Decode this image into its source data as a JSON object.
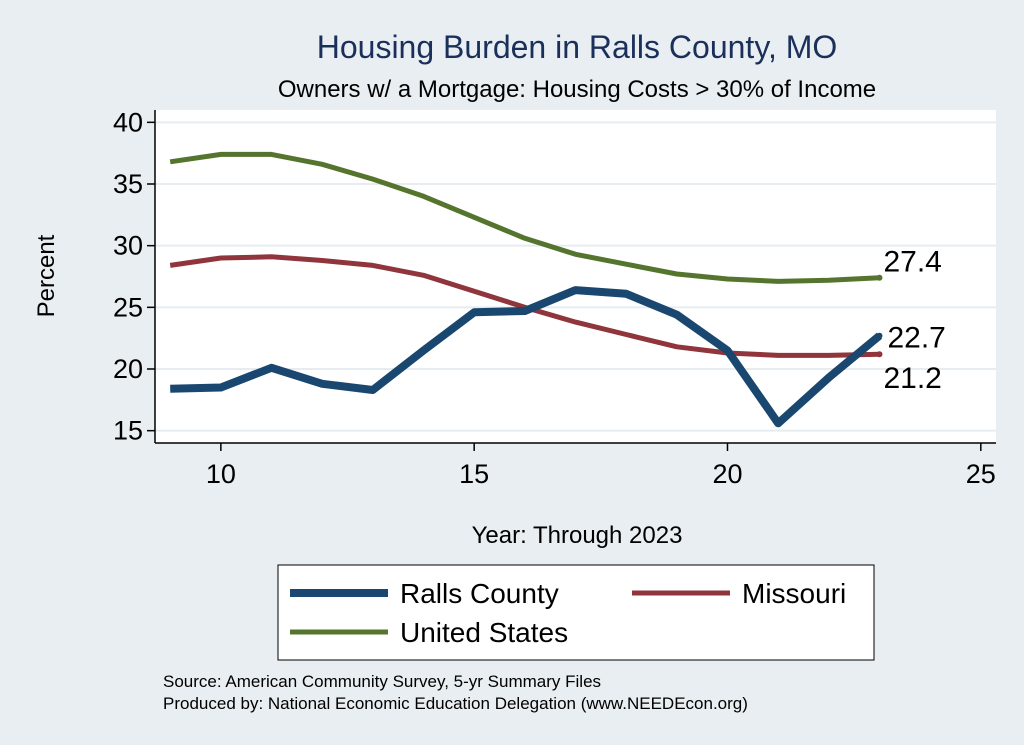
{
  "chart_data": {
    "type": "line",
    "title": "Housing Burden in Ralls County, MO",
    "subtitle": "Owners w/ a Mortgage: Housing Costs > 30% of Income",
    "xlabel": "Year: Through 2023",
    "ylabel": "Percent",
    "xlim": [
      8.7,
      25.3
    ],
    "ylim": [
      14,
      41
    ],
    "xticks": [
      10,
      15,
      20,
      25
    ],
    "yticks": [
      15,
      20,
      25,
      30,
      35,
      40
    ],
    "grid": true,
    "legend_position": "bottom",
    "series": [
      {
        "name": "Ralls County",
        "color": "#1a476f",
        "x": [
          9,
          10,
          11,
          12,
          13,
          14,
          15,
          16,
          17,
          18,
          19,
          20,
          21,
          22,
          23
        ],
        "values": [
          18.4,
          18.5,
          20.1,
          18.8,
          18.3,
          21.5,
          24.6,
          24.7,
          26.4,
          26.1,
          24.4,
          21.5,
          15.6,
          19.3,
          22.7
        ],
        "end_label": "22.7"
      },
      {
        "name": "Missouri",
        "color": "#90353b",
        "x": [
          9,
          10,
          11,
          12,
          13,
          14,
          15,
          16,
          17,
          18,
          19,
          20,
          21,
          22,
          23
        ],
        "values": [
          28.4,
          29.0,
          29.1,
          28.8,
          28.4,
          27.6,
          26.3,
          25.0,
          23.8,
          22.8,
          21.8,
          21.3,
          21.1,
          21.1,
          21.2
        ],
        "end_label": "21.2"
      },
      {
        "name": "United States",
        "color": "#55752f",
        "x": [
          9,
          10,
          11,
          12,
          13,
          14,
          15,
          16,
          17,
          18,
          19,
          20,
          21,
          22,
          23
        ],
        "values": [
          36.8,
          37.4,
          37.4,
          36.6,
          35.4,
          34.0,
          32.3,
          30.6,
          29.3,
          28.5,
          27.7,
          27.3,
          27.1,
          27.2,
          27.4
        ],
        "end_label": "27.4"
      }
    ]
  },
  "source_lines": [
    "Source: American Community Survey, 5-yr Summary Files",
    "Produced by: National Economic Education Delegation (www.NEEDEcon.org)"
  ]
}
